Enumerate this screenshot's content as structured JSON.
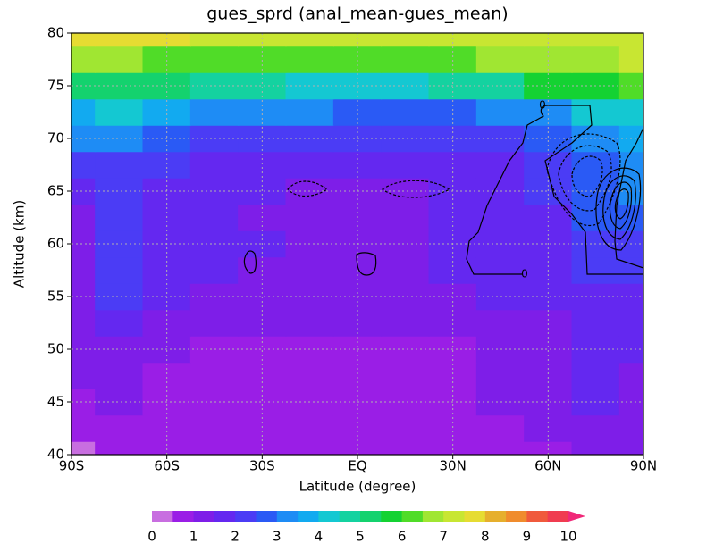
{
  "chart_data": {
    "type": "contour",
    "title": "gues_sprd (anal_mean-gues_mean)",
    "x_label": "Latitude (degree)",
    "y_label": "Altitude (km)",
    "x": [
      -90,
      -75,
      -60,
      -45,
      -30,
      -15,
      0,
      15,
      30,
      45,
      60,
      75,
      90
    ],
    "y": [
      40,
      42.5,
      45,
      47.5,
      50,
      52.5,
      55,
      57.5,
      60,
      62.5,
      65,
      67.5,
      70,
      72.5,
      75,
      77.5,
      80
    ],
    "z": [
      [
        0.4,
        0.8,
        0.9,
        0.9,
        0.8,
        0.8,
        0.8,
        0.8,
        0.6,
        0.8,
        0.9,
        1.2,
        1.3
      ],
      [
        0.8,
        0.9,
        0.9,
        0.9,
        0.9,
        0.9,
        0.9,
        0.9,
        0.9,
        0.9,
        1.0,
        1.2,
        1.4
      ],
      [
        0.9,
        1.2,
        0.9,
        0.9,
        0.9,
        0.9,
        0.9,
        0.9,
        0.9,
        1.0,
        1.2,
        1.5,
        1.4
      ],
      [
        1.0,
        1.3,
        0.9,
        0.9,
        0.9,
        0.9,
        0.9,
        0.9,
        0.9,
        1.0,
        1.2,
        1.5,
        1.4
      ],
      [
        1.1,
        1.4,
        1.2,
        0.9,
        0.9,
        0.9,
        0.9,
        0.9,
        0.9,
        1.1,
        1.3,
        1.5,
        1.5
      ],
      [
        1.1,
        1.5,
        1.3,
        1.0,
        1.2,
        1.2,
        1.1,
        1.1,
        1.2,
        1.3,
        1.4,
        1.5,
        1.5
      ],
      [
        1.2,
        2.2,
        1.5,
        1.2,
        1.3,
        1.4,
        1.3,
        1.3,
        1.4,
        1.5,
        1.6,
        1.8,
        1.7
      ],
      [
        1.3,
        2.3,
        1.6,
        1.5,
        1.4,
        1.4,
        1.3,
        1.4,
        1.5,
        1.6,
        1.7,
        2.0,
        2.0
      ],
      [
        1.4,
        2.3,
        1.8,
        1.6,
        1.5,
        1.3,
        1.3,
        1.4,
        1.6,
        1.7,
        1.8,
        2.3,
        2.4
      ],
      [
        1.4,
        2.3,
        1.8,
        1.6,
        1.4,
        1.3,
        1.3,
        1.3,
        1.5,
        1.7,
        1.9,
        2.6,
        2.8
      ],
      [
        1.5,
        2.0,
        1.7,
        1.6,
        1.6,
        1.4,
        1.4,
        1.4,
        1.5,
        1.7,
        2.0,
        2.8,
        3.2
      ],
      [
        2.2,
        2.3,
        2.0,
        1.8,
        1.8,
        1.7,
        1.6,
        1.6,
        1.7,
        1.9,
        2.2,
        2.8,
        3.0
      ],
      [
        3.4,
        3.0,
        2.6,
        2.2,
        2.3,
        2.2,
        2.1,
        2.0,
        2.1,
        2.2,
        2.5,
        3.2,
        3.5
      ],
      [
        3.8,
        4.0,
        3.6,
        3.2,
        3.3,
        3.0,
        2.9,
        2.8,
        2.9,
        3.1,
        3.4,
        4.2,
        4.4
      ],
      [
        5.2,
        5.3,
        5.0,
        4.8,
        4.7,
        4.4,
        4.2,
        4.3,
        4.6,
        4.9,
        5.5,
        5.8,
        6.0
      ],
      [
        6.5,
        6.5,
        6.3,
        6.2,
        6.4,
        6.2,
        6.0,
        6.0,
        6.3,
        6.5,
        6.6,
        6.8,
        7.0
      ],
      [
        7.5,
        7.6,
        7.6,
        7.4,
        7.4,
        7.2,
        7.2,
        7.2,
        7.3,
        7.3,
        7.0,
        7.2,
        7.0
      ]
    ],
    "xlim": [
      -90,
      90
    ],
    "ylim": [
      40,
      80
    ],
    "xticks": [
      {
        "value": -90,
        "label": "90S"
      },
      {
        "value": -60,
        "label": "60S"
      },
      {
        "value": -30,
        "label": "30S"
      },
      {
        "value": 0,
        "label": "EQ"
      },
      {
        "value": 30,
        "label": "30N"
      },
      {
        "value": 60,
        "label": "60N"
      },
      {
        "value": 90,
        "label": "90N"
      }
    ],
    "yticks": [
      40,
      45,
      50,
      55,
      60,
      65,
      70,
      75,
      80
    ],
    "grid": true,
    "levels": [
      0,
      0.5,
      1,
      1.5,
      2,
      2.5,
      3,
      3.5,
      4,
      4.5,
      5,
      5.5,
      6,
      6.5,
      7,
      7.5,
      8,
      8.5,
      9,
      9.5,
      10
    ],
    "colors": [
      "#c86ee0",
      "#9a1ee6",
      "#7e1ee8",
      "#6428f0",
      "#4b3cf5",
      "#2a5af5",
      "#1e8cf5",
      "#12aaf0",
      "#14c8d2",
      "#14d2a0",
      "#14d26e",
      "#14d232",
      "#50dc28",
      "#a0e632",
      "#c8e632",
      "#e6dc32",
      "#e6af2d",
      "#f08c2d",
      "#f05a3c",
      "#f03c50"
    ],
    "extend_color": "#f02878",
    "colorbar_ticks": [
      0,
      1,
      2,
      3,
      4,
      5,
      6,
      7,
      8,
      9,
      10
    ],
    "contour_level": 0
  }
}
